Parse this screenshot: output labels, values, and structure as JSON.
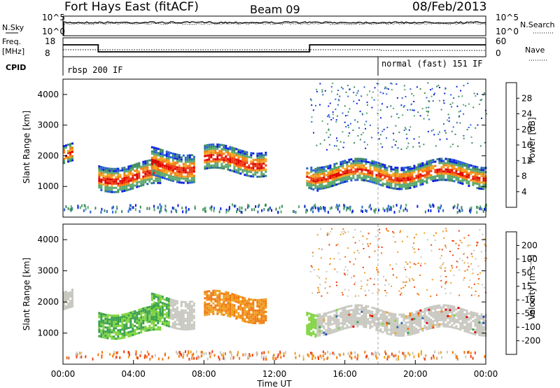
{
  "header": {
    "station": "Fort Hays East (fitACF)",
    "beam": "Beam 09",
    "date": "08/Feb/2013"
  },
  "status_panels": {
    "nsky": {
      "label": "N.Sky",
      "ticks": [
        "10^5",
        "10^0"
      ]
    },
    "nsearch": {
      "label": "N.Search",
      "ticks": [
        "10^5",
        "10^0"
      ]
    },
    "freq": {
      "label_line1": "Freq.",
      "label_line2": "[MHz]",
      "ticks": [
        "18",
        "8"
      ]
    },
    "nave": {
      "label": "Nave",
      "ticks": [
        "60",
        "0"
      ]
    },
    "cpid": {
      "label": "CPID",
      "segments": [
        "rbsp 200 IF",
        "normal (fast) 151 IF"
      ]
    }
  },
  "colors": {
    "power": [
      "#0a1fdc",
      "#2a62d2",
      "#3b8a5e",
      "#5aa86e",
      "#a8d846",
      "#f2a51e",
      "#f37d10",
      "#ee3a10",
      "#e00000"
    ],
    "velocity": [
      "#2042c0",
      "#2f6aa8",
      "#3aa04c",
      "#7ed43c",
      "#c8c8c0",
      "#f0a020",
      "#f07a10",
      "#f04010",
      "#e00000"
    ]
  },
  "chart_data": [
    {
      "type": "heatmap",
      "name": "power",
      "xlabel": "",
      "ylabel": "Slant Range [km]",
      "ylim": [
        0,
        4500
      ],
      "xlim": [
        0,
        24
      ],
      "yticks": [
        "1000",
        "2000",
        "3000",
        "4000"
      ],
      "colorbar": {
        "label": "Power [dB]",
        "ticks": [
          "4",
          "8",
          "12",
          "16",
          "20",
          "24",
          "28"
        ],
        "range": [
          0,
          32
        ]
      },
      "echo_bands": [
        {
          "x": [
            0.0,
            0.5
          ],
          "y": [
            1800,
            2400
          ]
        },
        {
          "x": [
            2.0,
            5.5
          ],
          "y": [
            1000,
            1800
          ]
        },
        {
          "x": [
            5.0,
            7.5
          ],
          "y": [
            1300,
            2200
          ]
        },
        {
          "x": [
            8.0,
            11.5
          ],
          "y": [
            1500,
            2300
          ]
        },
        {
          "x": [
            13.8,
            14.4
          ],
          "y": [
            1000,
            1700
          ]
        },
        {
          "x": [
            14.4,
            24.0
          ],
          "y": [
            1100,
            1800
          ]
        }
      ]
    },
    {
      "type": "heatmap",
      "name": "velocity",
      "xlabel": "Time UT",
      "ylabel": "Slant Range [km]",
      "ylim": [
        0,
        4500
      ],
      "xlim": [
        0,
        24
      ],
      "yticks": [
        "1000",
        "2000",
        "3000",
        "4000"
      ],
      "xticks": [
        "00:00",
        "04:00",
        "08:00",
        "12:00",
        "16:00",
        "20:00",
        "00:00"
      ],
      "colorbar": {
        "label": "Velocity [m s⁻¹]",
        "ticks": [
          "200",
          "100",
          "50",
          "15",
          "-15",
          "-50",
          "-100",
          "-200"
        ]
      }
    }
  ]
}
